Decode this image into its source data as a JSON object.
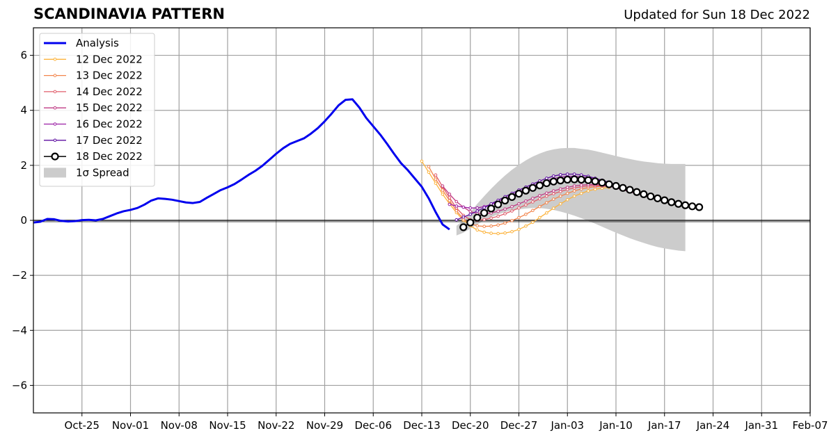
{
  "title": "SCANDINAVIA PATTERN",
  "subtitle": "Updated for Sun 18 Dec 2022",
  "colors": {
    "analysis": "#0000ee",
    "spread": "#cccccc",
    "12 Dec 2022": "#fcb33c",
    "13 Dec 2022": "#f2844b",
    "14 Dec 2022": "#e05c6a",
    "15 Dec 2022": "#bf3984",
    "16 Dec 2022": "#9a1ea4",
    "17 Dec 2022": "#5d0ca0",
    "18 Dec 2022": "#000000"
  },
  "chart_data": {
    "type": "line",
    "xlim": [
      "2022-10-18",
      "2023-02-07"
    ],
    "ylim": [
      -7,
      7
    ],
    "yticks": [
      -6,
      -4,
      -2,
      0,
      2,
      4,
      6
    ],
    "ytick_labels": [
      "−6",
      "−4",
      "−2",
      "0",
      "2",
      "4",
      "6"
    ],
    "xticks": [
      "2022-10-25",
      "2022-11-01",
      "2022-11-08",
      "2022-11-15",
      "2022-11-22",
      "2022-11-29",
      "2022-12-06",
      "2022-12-13",
      "2022-12-20",
      "2022-12-27",
      "2023-01-03",
      "2023-01-10",
      "2023-01-17",
      "2023-01-24",
      "2023-01-31",
      "2023-02-07"
    ],
    "xtick_labels": [
      "Oct-25",
      "Nov-01",
      "Nov-08",
      "Nov-15",
      "Nov-22",
      "Nov-29",
      "Dec-06",
      "Dec-13",
      "Dec-20",
      "Dec-27",
      "Jan-03",
      "Jan-10",
      "Jan-17",
      "Jan-24",
      "Jan-31",
      "Feb-07"
    ],
    "grid": true,
    "legend_position": "top-left",
    "analysis": {
      "name": "Analysis",
      "start": "2022-10-18",
      "values": [
        -0.08,
        -0.05,
        0.05,
        0.04,
        -0.02,
        -0.04,
        -0.03,
        0.01,
        0.02,
        0.0,
        0.05,
        0.15,
        0.25,
        0.33,
        0.38,
        0.45,
        0.57,
        0.72,
        0.8,
        0.78,
        0.75,
        0.7,
        0.65,
        0.63,
        0.67,
        0.82,
        0.96,
        1.1,
        1.2,
        1.32,
        1.48,
        1.65,
        1.8,
        1.98,
        2.2,
        2.42,
        2.62,
        2.78,
        2.88,
        2.98,
        3.15,
        3.35,
        3.6,
        3.88,
        4.18,
        4.38,
        4.4,
        4.1,
        3.72,
        3.42,
        3.12,
        2.78,
        2.42,
        2.08,
        1.82,
        1.52,
        1.22,
        0.8,
        0.3,
        -0.15,
        -0.33
      ]
    },
    "spread": {
      "name": "1σ Spread",
      "start": "2022-12-18",
      "upper": [
        -0.2,
        0.0,
        0.3,
        0.6,
        0.88,
        1.15,
        1.4,
        1.63,
        1.84,
        2.02,
        2.18,
        2.32,
        2.43,
        2.52,
        2.58,
        2.62,
        2.63,
        2.63,
        2.6,
        2.57,
        2.52,
        2.46,
        2.4,
        2.34,
        2.28,
        2.23,
        2.18,
        2.14,
        2.11,
        2.08,
        2.06,
        2.05,
        2.05,
        2.05
      ],
      "lower": [
        -0.55,
        -0.45,
        -0.3,
        -0.15,
        0.0,
        0.12,
        0.22,
        0.3,
        0.36,
        0.4,
        0.43,
        0.45,
        0.45,
        0.42,
        0.38,
        0.32,
        0.25,
        0.17,
        0.08,
        -0.02,
        -0.12,
        -0.23,
        -0.34,
        -0.45,
        -0.55,
        -0.65,
        -0.74,
        -0.82,
        -0.9,
        -0.97,
        -1.02,
        -1.06,
        -1.1,
        -1.12
      ]
    },
    "series": [
      {
        "name": "12 Dec 2022",
        "start": "2022-12-13",
        "values": [
          2.15,
          1.75,
          1.35,
          0.95,
          0.6,
          0.28,
          0.0,
          -0.2,
          -0.35,
          -0.43,
          -0.47,
          -0.48,
          -0.46,
          -0.41,
          -0.33,
          -0.21,
          -0.07,
          0.1,
          0.27,
          0.44,
          0.6,
          0.75,
          0.88,
          0.98,
          1.07,
          1.13,
          1.17,
          1.2
        ]
      },
      {
        "name": "13 Dec 2022",
        "start": "2022-12-14",
        "values": [
          1.95,
          1.5,
          1.1,
          0.72,
          0.35,
          0.05,
          -0.12,
          -0.2,
          -0.22,
          -0.21,
          -0.17,
          -0.1,
          -0.01,
          0.1,
          0.22,
          0.36,
          0.5,
          0.64,
          0.77,
          0.88,
          0.98,
          1.07,
          1.14,
          1.19,
          1.22,
          1.24,
          1.24,
          1.22,
          1.18,
          1.12,
          1.05,
          1.0
        ]
      },
      {
        "name": "14 Dec 2022",
        "start": "2022-12-15",
        "values": [
          1.65,
          1.22,
          0.82,
          0.45,
          0.18,
          0.02,
          0.0,
          0.03,
          0.08,
          0.15,
          0.24,
          0.34,
          0.45,
          0.56,
          0.67,
          0.78,
          0.88,
          0.97,
          1.05,
          1.12,
          1.18,
          1.22,
          1.25,
          1.26,
          1.25,
          1.23,
          1.2,
          1.15,
          1.09,
          1.02,
          0.95,
          0.88
        ]
      },
      {
        "name": "15 Dec 2022",
        "start": "2022-12-16",
        "values": [
          1.25,
          0.95,
          0.68,
          0.48,
          0.32,
          0.25,
          0.24,
          0.27,
          0.33,
          0.41,
          0.5,
          0.6,
          0.7,
          0.8,
          0.9,
          0.99,
          1.07,
          1.14,
          1.2,
          1.25,
          1.28,
          1.3,
          1.3,
          1.28,
          1.24,
          1.18,
          1.11,
          1.04,
          0.97,
          0.9,
          0.83
        ]
      },
      {
        "name": "16 Dec 2022",
        "start": "2022-12-17",
        "values": [
          0.58,
          0.52,
          0.48,
          0.45,
          0.45,
          0.5,
          0.58,
          0.68,
          0.8,
          0.92,
          1.03,
          1.14,
          1.25,
          1.35,
          1.44,
          1.52,
          1.57,
          1.6,
          1.6,
          1.58,
          1.55,
          1.5,
          1.43,
          1.36,
          1.28,
          1.2,
          1.12,
          1.04,
          0.96
        ]
      },
      {
        "name": "17 Dec 2022",
        "start": "2022-12-18",
        "values": [
          0.02,
          0.12,
          0.22,
          0.34,
          0.46,
          0.6,
          0.73,
          0.86,
          0.98,
          1.1,
          1.21,
          1.32,
          1.43,
          1.53,
          1.61,
          1.66,
          1.68,
          1.68,
          1.65,
          1.6,
          1.53,
          1.46,
          1.38,
          1.3
        ]
      },
      {
        "name": "18 Dec 2022",
        "start": "2022-12-19",
        "values": [
          -0.25,
          -0.08,
          0.1,
          0.27,
          0.43,
          0.58,
          0.72,
          0.85,
          0.97,
          1.08,
          1.18,
          1.27,
          1.35,
          1.41,
          1.45,
          1.48,
          1.49,
          1.48,
          1.46,
          1.42,
          1.37,
          1.31,
          1.25,
          1.18,
          1.11,
          1.03,
          0.95,
          0.87,
          0.8,
          0.73,
          0.66,
          0.6,
          0.55,
          0.51,
          0.48
        ]
      }
    ]
  }
}
